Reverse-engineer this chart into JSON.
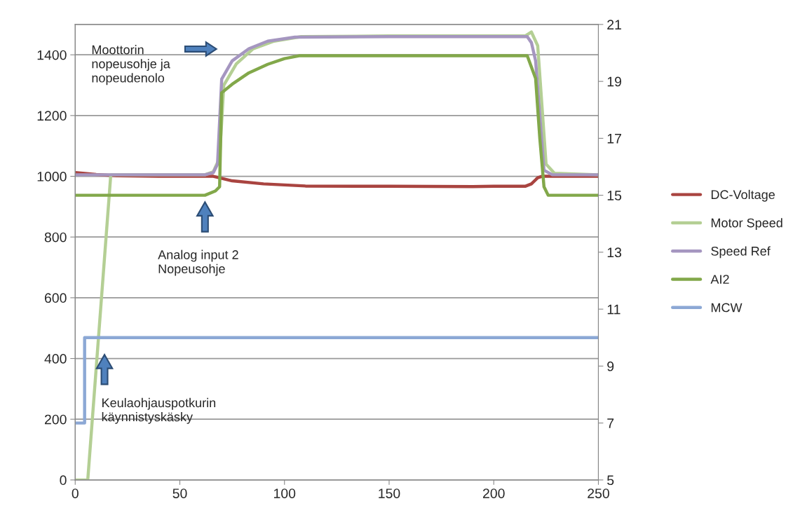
{
  "chart_data": {
    "type": "line",
    "xlim": [
      0,
      250
    ],
    "xticks": [
      0,
      50,
      100,
      150,
      200,
      250
    ],
    "ylim": [
      0,
      1500
    ],
    "yticks": [
      0,
      200,
      400,
      600,
      800,
      1000,
      1200,
      1400
    ],
    "y2lim": [
      5,
      21
    ],
    "y2ticks": [
      5,
      7,
      9,
      11,
      13,
      15,
      17,
      19,
      21
    ],
    "grid": "y",
    "legend": "right",
    "marker": "none",
    "line_style": "solid",
    "annotations": [
      "Moottorin\nnopeusohje ja\nnopeudenolo",
      "Analog input 2\nNopeusohje",
      "Keulaohjauspotkurin\nkäynnistyskäsky"
    ],
    "series": [
      {
        "name": "DC-Voltage",
        "color": "#a94440",
        "x": [
          0,
          10,
          20,
          40,
          62,
          66,
          75,
          90,
          110,
          150,
          190,
          200,
          215,
          218,
          221,
          223,
          235,
          250
        ],
        "values": [
          1012,
          1006,
          1002,
          1000,
          1000,
          1000,
          985,
          975,
          968,
          967,
          966,
          967,
          967,
          975,
          995,
          1000,
          1000,
          1000
        ]
      },
      {
        "name": "Motor Speed",
        "color": "#b4cf94",
        "x": [
          0,
          6,
          17,
          40,
          62,
          66,
          69,
          71,
          77,
          85,
          95,
          108,
          150,
          215,
          218,
          221,
          225,
          229,
          250
        ],
        "values": [
          0,
          0,
          1005,
          1005,
          1005,
          1015,
          1060,
          1300,
          1370,
          1420,
          1445,
          1460,
          1462,
          1462,
          1475,
          1430,
          1040,
          1010,
          1005
        ]
      },
      {
        "name": "Speed Ref",
        "color": "#a596c0",
        "x": [
          0,
          30,
          62,
          66,
          68,
          70,
          75,
          83,
          92,
          105,
          150,
          216,
          218,
          220,
          224,
          228,
          250
        ],
        "values": [
          1005,
          1005,
          1005,
          1012,
          1040,
          1320,
          1380,
          1420,
          1445,
          1458,
          1460,
          1460,
          1440,
          1380,
          1020,
          1005,
          1005
        ]
      },
      {
        "name": "AI2",
        "color": "#82a84a",
        "axis": "y2",
        "x": [
          0,
          62,
          67,
          69,
          70,
          75,
          83,
          92,
          100,
          107,
          150,
          216,
          218,
          220,
          222,
          224,
          226,
          250
        ],
        "values": [
          15,
          15,
          15.15,
          15.3,
          18.6,
          18.9,
          19.3,
          19.6,
          19.8,
          19.9,
          19.9,
          19.9,
          19.5,
          19.1,
          17,
          15.3,
          15,
          15
        ]
      },
      {
        "name": "MCW",
        "color": "#8ca8d5",
        "axis": "y2",
        "x": [
          0,
          4.5,
          4.5,
          50,
          100,
          150,
          200,
          250
        ],
        "values": [
          7,
          7,
          10,
          10,
          10,
          10,
          10,
          10
        ]
      }
    ]
  }
}
